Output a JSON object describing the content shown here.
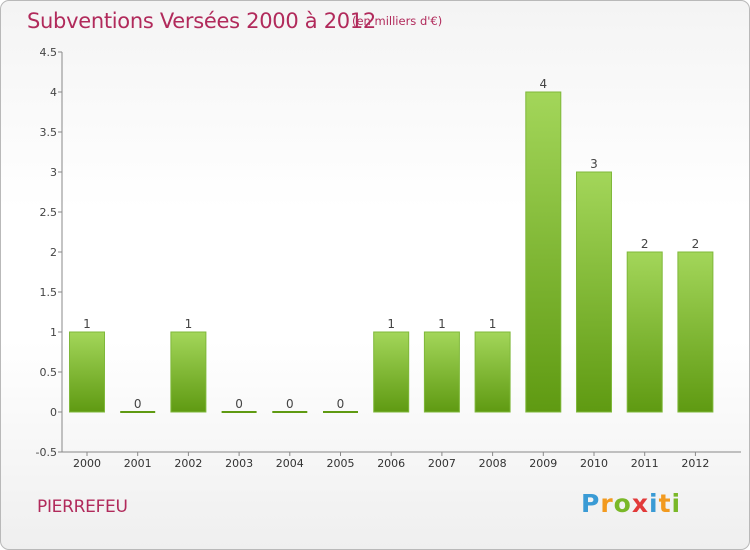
{
  "title": "Subventions Versées 2000 à 2012",
  "subtitle": "(en milliers d'€)",
  "commune": "PIERREFEU",
  "logo": {
    "text": "Proxiti",
    "letter_colors": [
      "#3a9bd5",
      "#f29a1f",
      "#7ab828",
      "#e23a3a",
      "#3a9bd5",
      "#f29a1f",
      "#7ab828"
    ]
  },
  "colors": {
    "bar_light": "#a3d65a",
    "bar_dark": "#5f9a12",
    "title": "#b12a5b",
    "axis": "#888888"
  },
  "chart_data": {
    "type": "bar",
    "title": "Subventions Versées 2000 à 2012",
    "subtitle": "(en milliers d'€)",
    "categories": [
      "2000",
      "2001",
      "2002",
      "2003",
      "2004",
      "2005",
      "2006",
      "2007",
      "2008",
      "2009",
      "2010",
      "2011",
      "2012"
    ],
    "values": [
      1,
      0,
      1,
      0,
      0,
      0,
      1,
      1,
      1,
      4,
      3,
      2,
      2
    ],
    "data_labels": [
      "1",
      "0",
      "1",
      "0",
      "0",
      "0",
      "1",
      "1",
      "1",
      "4",
      "3",
      "2",
      "2"
    ],
    "ylim": [
      -0.5,
      4.5
    ],
    "yticks": [
      -0.5,
      0,
      0.5,
      1,
      1.5,
      2,
      2.5,
      3,
      3.5,
      4,
      4.5
    ],
    "ytick_labels": [
      "-0.5",
      "0",
      "0.5",
      "1",
      "1.5",
      "2",
      "2.5",
      "3",
      "3.5",
      "4",
      "4.5"
    ],
    "grid": false,
    "legend": "none"
  }
}
